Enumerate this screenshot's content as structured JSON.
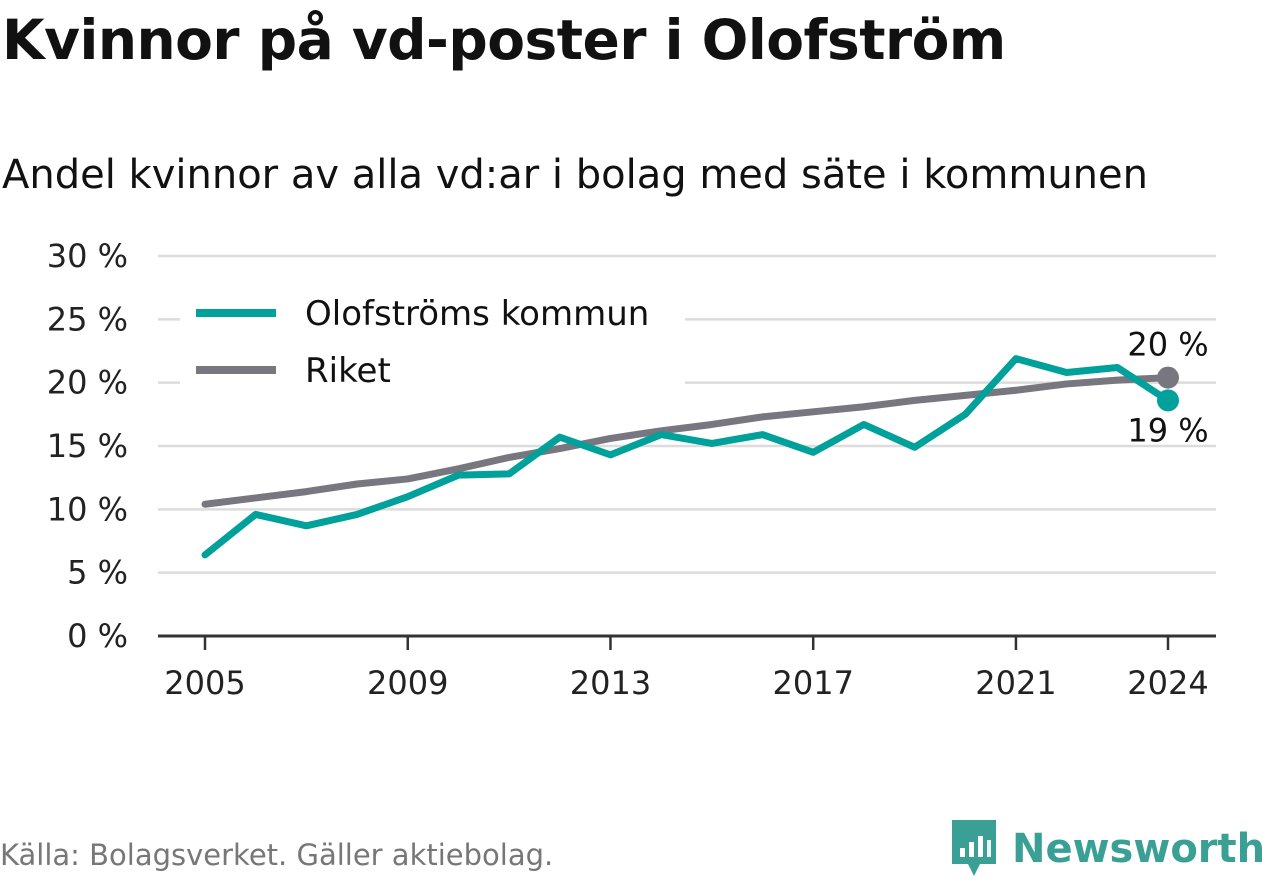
{
  "title": "Kvinnor på vd-poster i Olofström",
  "subtitle": "Andel kvinnor av alla vd:ar i bolag med säte i kommunen",
  "source": "Källa: Bolagsverket. Gäller aktiebolag.",
  "brand": "Newsworthy",
  "chart_data": {
    "type": "line",
    "x": [
      2005,
      2006,
      2007,
      2008,
      2009,
      2010,
      2011,
      2012,
      2013,
      2014,
      2015,
      2016,
      2017,
      2018,
      2019,
      2020,
      2021,
      2022,
      2023,
      2024
    ],
    "ylim": [
      0,
      30
    ],
    "y_ticks": [
      0,
      5,
      10,
      15,
      20,
      25,
      30
    ],
    "y_tick_labels": [
      "0 %",
      "5 %",
      "10 %",
      "15 %",
      "20 %",
      "25 %",
      "30 %"
    ],
    "x_ticks": [
      2005,
      2009,
      2013,
      2017,
      2021,
      2024
    ],
    "x_tick_labels": [
      "2005",
      "2009",
      "2013",
      "2017",
      "2021",
      "2024"
    ],
    "legend_position": "top-left",
    "series": [
      {
        "name": "Olofströms kommun",
        "color": "#00a19a",
        "values": [
          6.4,
          9.6,
          8.7,
          9.6,
          11.0,
          12.7,
          12.8,
          15.7,
          14.3,
          15.9,
          15.2,
          15.9,
          14.5,
          16.7,
          14.9,
          17.5,
          21.9,
          20.8,
          21.2,
          18.6
        ],
        "end_label": "19 %"
      },
      {
        "name": "Riket",
        "color": "#78767e",
        "values": [
          10.4,
          10.9,
          11.4,
          12.0,
          12.4,
          13.2,
          14.1,
          14.8,
          15.6,
          16.2,
          16.7,
          17.3,
          17.7,
          18.1,
          18.6,
          19.0,
          19.4,
          19.9,
          20.2,
          20.4
        ],
        "end_label": "20 %"
      }
    ]
  }
}
